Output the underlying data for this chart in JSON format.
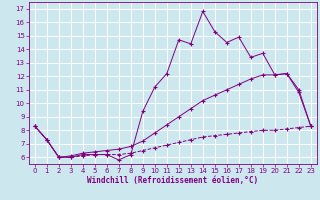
{
  "title": "",
  "xlabel": "Windchill (Refroidissement éolien,°C)",
  "bg_color": "#cce8ee",
  "grid_color": "#ffffff",
  "line_color": "#800080",
  "spine_color": "#800080",
  "tick_color": "#800080",
  "label_color": "#800080",
  "xlim": [
    -0.5,
    23.5
  ],
  "ylim": [
    5.5,
    17.5
  ],
  "xticks": [
    0,
    1,
    2,
    3,
    4,
    5,
    6,
    7,
    8,
    9,
    10,
    11,
    12,
    13,
    14,
    15,
    16,
    17,
    18,
    19,
    20,
    21,
    22,
    23
  ],
  "yticks": [
    6,
    7,
    8,
    9,
    10,
    11,
    12,
    13,
    14,
    15,
    16,
    17
  ],
  "series1_x": [
    0,
    1,
    2,
    3,
    4,
    5,
    6,
    7,
    8,
    9,
    10,
    11,
    12,
    13,
    14,
    15,
    16,
    17,
    18,
    19,
    20,
    21,
    22,
    23
  ],
  "series1_y": [
    8.3,
    7.3,
    6.0,
    6.0,
    6.2,
    6.2,
    6.2,
    5.8,
    6.2,
    9.4,
    11.2,
    12.2,
    14.7,
    14.4,
    16.8,
    15.3,
    14.5,
    14.9,
    13.4,
    13.7,
    12.1,
    12.2,
    10.8,
    8.3
  ],
  "series2_x": [
    0,
    1,
    2,
    3,
    4,
    5,
    6,
    7,
    8,
    9,
    10,
    11,
    12,
    13,
    14,
    15,
    16,
    17,
    18,
    19,
    20,
    21,
    22,
    23
  ],
  "series2_y": [
    8.3,
    7.3,
    6.0,
    6.1,
    6.3,
    6.4,
    6.5,
    6.6,
    6.8,
    7.2,
    7.8,
    8.4,
    9.0,
    9.6,
    10.2,
    10.6,
    11.0,
    11.4,
    11.8,
    12.1,
    12.1,
    12.2,
    11.0,
    8.3
  ],
  "series3_x": [
    0,
    1,
    2,
    3,
    4,
    5,
    6,
    7,
    8,
    9,
    10,
    11,
    12,
    13,
    14,
    15,
    16,
    17,
    18,
    19,
    20,
    21,
    22,
    23
  ],
  "series3_y": [
    8.3,
    7.3,
    6.0,
    6.0,
    6.1,
    6.2,
    6.2,
    6.2,
    6.3,
    6.5,
    6.7,
    6.9,
    7.1,
    7.3,
    7.5,
    7.6,
    7.7,
    7.8,
    7.9,
    8.0,
    8.0,
    8.1,
    8.2,
    8.3
  ],
  "xlabel_fontsize": 5.5,
  "tick_fontsize": 5.0,
  "linewidth": 0.7,
  "marker_size": 2.5
}
